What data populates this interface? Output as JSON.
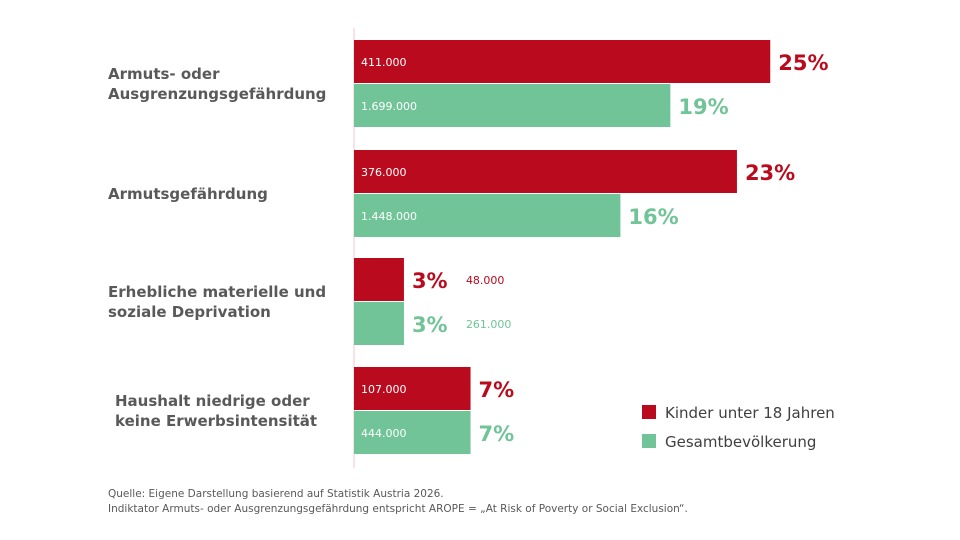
{
  "chart_data": {
    "type": "bar",
    "orientation": "horizontal",
    "title": "",
    "xlabel": "",
    "ylabel": "",
    "xlim": [
      0,
      25
    ],
    "grid": false,
    "legend_position": "bottom-right",
    "categories": [
      [
        "Armuts- oder",
        "Ausgrenzungsgefährdung"
      ],
      [
        "Armutsgefährdung"
      ],
      [
        "Erhebliche materielle und",
        "soziale Deprivation"
      ],
      [
        "Haushalt niedrige oder",
        "keine Erwerbsintensität"
      ]
    ],
    "series": [
      {
        "name": "Kinder unter 18 Jahren",
        "color": "#BA0B1E",
        "values": [
          25,
          23,
          3,
          7
        ],
        "pct_labels": [
          "25%",
          "23%",
          "3%",
          "7%"
        ],
        "count_labels": [
          "411.000",
          "376.000",
          "48.000",
          "107.000"
        ]
      },
      {
        "name": "Gesamtbevölkerung",
        "color": "#70C497",
        "values": [
          19,
          16,
          3,
          7
        ],
        "pct_labels": [
          "19%",
          "16%",
          "3%",
          "7%"
        ],
        "count_labels": [
          "1.699.000",
          "1.448.000",
          "261.000",
          "444.000"
        ]
      }
    ]
  },
  "footnotes": {
    "source": "Quelle: Eigene Darstellung basierend auf Statistik Austria 2026.",
    "indicator": "Indiktator Armuts- oder Ausgrenzungsgefährdung entspricht AROPE = „At Risk of Poverty or Social Exclusion“."
  }
}
